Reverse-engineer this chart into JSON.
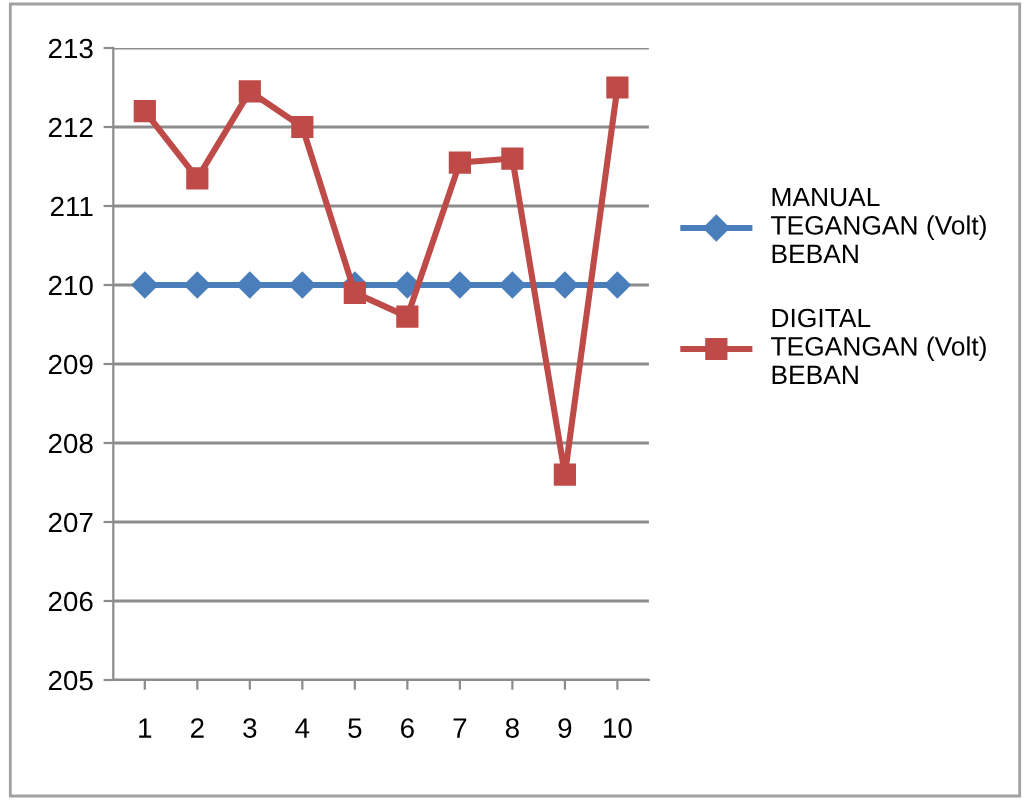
{
  "chart_data": {
    "type": "line",
    "categories": [
      "1",
      "2",
      "3",
      "4",
      "5",
      "6",
      "7",
      "8",
      "9",
      "10"
    ],
    "series": [
      {
        "name": "MANUAL TEGANGAN (Volt) BEBAN",
        "color": "#4a7ebb",
        "marker": "diamond",
        "values": [
          210,
          210,
          210,
          210,
          210,
          210,
          210,
          210,
          210,
          210
        ]
      },
      {
        "name": "DIGITAL TEGANGAN (Volt) BEBAN",
        "color": "#be4b48",
        "marker": "square",
        "values": [
          212.2,
          211.35,
          212.45,
          212.0,
          209.9,
          209.6,
          211.55,
          211.6,
          207.6,
          212.5
        ]
      }
    ],
    "ylim": [
      205,
      213
    ],
    "yticks": [
      205,
      206,
      207,
      208,
      209,
      210,
      211,
      212,
      213
    ],
    "grid": "y",
    "legend": "right"
  }
}
